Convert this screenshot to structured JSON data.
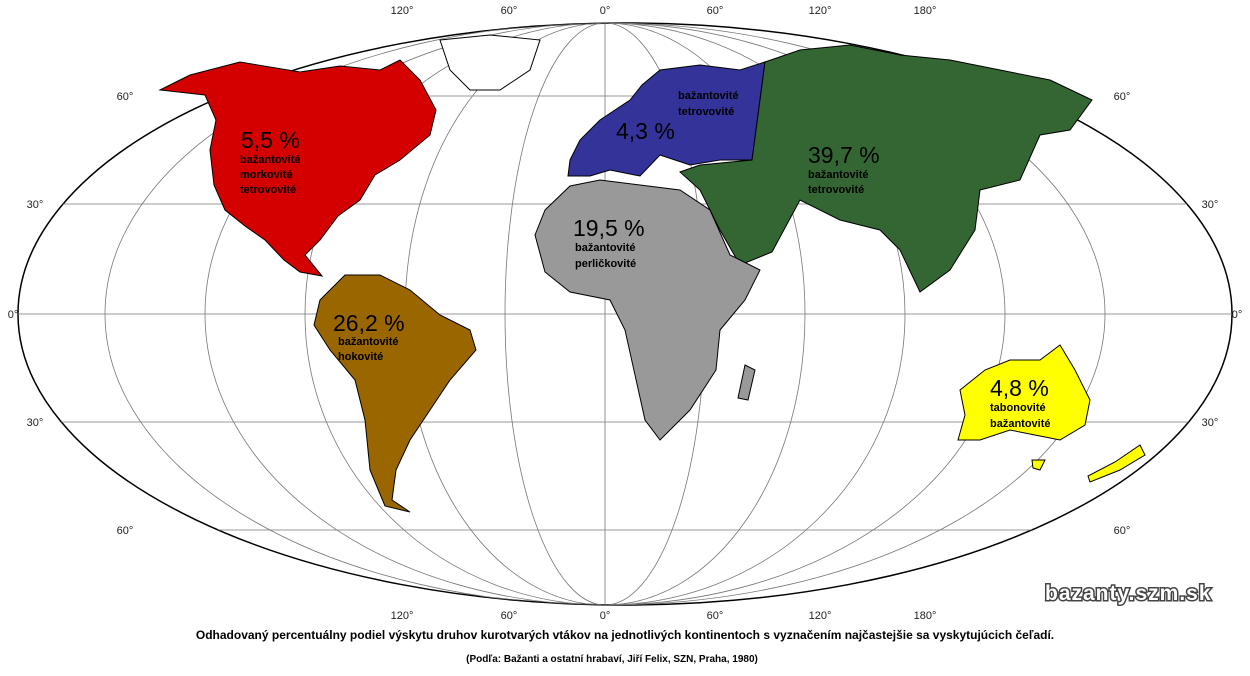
{
  "map": {
    "longitude_labels_top": [
      "120°",
      "60°",
      "0°",
      "60°",
      "120°",
      "180°"
    ],
    "longitude_labels_bottom": [
      "120°",
      "60°",
      "0°",
      "60°",
      "120°",
      "180°"
    ],
    "latitude_labels_left": [
      "60°",
      "30°",
      "0°",
      "30°",
      "60°"
    ],
    "latitude_labels_right": [
      "60°",
      "30°",
      "0°",
      "30°",
      "60°"
    ],
    "regions": [
      {
        "percent": "5,5 %",
        "families": [
          "bažantovité",
          "morkovité",
          "tetrovovité"
        ]
      },
      {
        "percent": "4,3 %",
        "families": [
          "bažantovité",
          "tetrovovité"
        ]
      },
      {
        "percent": "39,7 %",
        "families": [
          "bažantovité",
          "tetrovovité"
        ]
      },
      {
        "percent": "19,5 %",
        "families": [
          "bažantovité",
          "perličkovité"
        ]
      },
      {
        "percent": "26,2 %",
        "families": [
          "bažantovité",
          "hokovité"
        ]
      },
      {
        "percent": "4,8 %",
        "families": [
          "tabonovité",
          "bažantovité"
        ]
      }
    ],
    "watermark": "bazanty.szm.sk",
    "caption": "Odhadovaný percentuálny podiel výskytu druhov kurotvarých vtákov na jednotlivých kontinentoch s vyznačením najčastejšie sa vyskytujúcich čeľadí.",
    "source": "(Podľa: Bažanti a ostatní hrabaví, Jiří Felix, SZN, Praha, 1980)"
  }
}
